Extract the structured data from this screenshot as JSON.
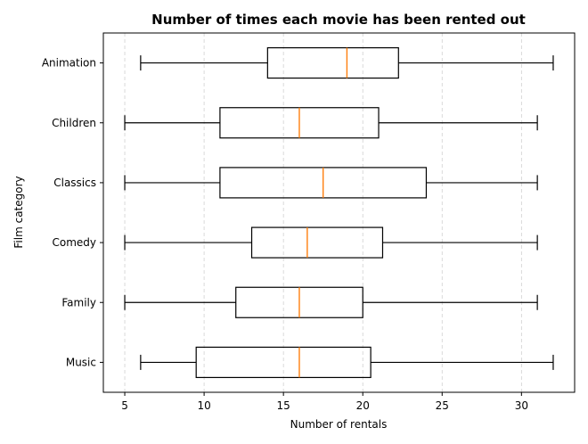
{
  "chart_data": {
    "type": "boxplot",
    "orientation": "horizontal",
    "title": "Number of times each movie has been rented out",
    "xlabel": "Number of rentals",
    "ylabel": "Film category",
    "xlim": [
      3.65,
      33.35
    ],
    "xticks": [
      5,
      10,
      15,
      20,
      25,
      30
    ],
    "grid": "x-dashed",
    "median_color": "#ff7f0e",
    "categories": [
      "Animation",
      "Children",
      "Classics",
      "Comedy",
      "Family",
      "Music"
    ],
    "series": [
      {
        "category": "Animation",
        "whislo": 6,
        "q1": 14,
        "median": 19,
        "q3": 22.25,
        "whishi": 32
      },
      {
        "category": "Children",
        "whislo": 5,
        "q1": 11,
        "median": 16,
        "q3": 21,
        "whishi": 31
      },
      {
        "category": "Classics",
        "whislo": 5,
        "q1": 11,
        "median": 17.5,
        "q3": 24,
        "whishi": 31
      },
      {
        "category": "Comedy",
        "whislo": 5,
        "q1": 13,
        "median": 16.5,
        "q3": 21.25,
        "whishi": 31
      },
      {
        "category": "Family",
        "whislo": 5,
        "q1": 12,
        "median": 16,
        "q3": 20,
        "whishi": 31
      },
      {
        "category": "Music",
        "whislo": 6,
        "q1": 9.5,
        "median": 16,
        "q3": 20.5,
        "whishi": 32
      }
    ]
  }
}
